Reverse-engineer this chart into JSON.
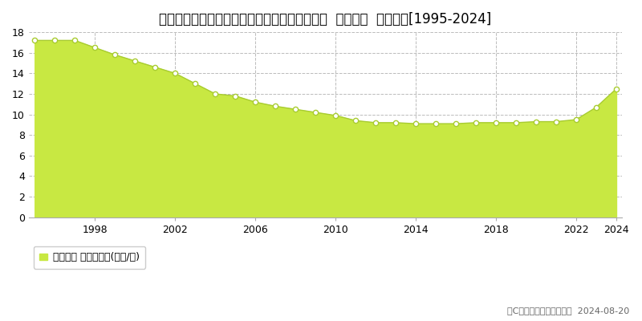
{
  "title": "北海道札幌市手稲区曙２条３丁目５３７番７外  地価公示  地価推移[1995-2024]",
  "years": [
    1995,
    1996,
    1997,
    1998,
    1999,
    2000,
    2001,
    2002,
    2003,
    2004,
    2005,
    2006,
    2007,
    2008,
    2009,
    2010,
    2011,
    2012,
    2013,
    2014,
    2015,
    2016,
    2017,
    2018,
    2019,
    2020,
    2021,
    2022,
    2023,
    2024
  ],
  "values": [
    17.2,
    17.2,
    17.2,
    16.5,
    15.8,
    15.2,
    14.6,
    14.0,
    13.0,
    12.0,
    11.8,
    11.2,
    10.8,
    10.5,
    10.2,
    9.9,
    9.4,
    9.2,
    9.2,
    9.1,
    9.1,
    9.1,
    9.2,
    9.2,
    9.2,
    9.3,
    9.3,
    9.5,
    10.7,
    12.5
  ],
  "fill_color": "#c8e842",
  "line_color": "#a8cc30",
  "marker_facecolor": "#ffffff",
  "marker_edgecolor": "#a8cc30",
  "background_color": "#ffffff",
  "plot_bg_color": "#ffffff",
  "grid_color": "#bbbbbb",
  "ylim": [
    0,
    18
  ],
  "yticks": [
    0,
    2,
    4,
    6,
    8,
    10,
    12,
    14,
    16,
    18
  ],
  "xticks": [
    1998,
    2002,
    2006,
    2010,
    2014,
    2018,
    2022,
    2024
  ],
  "legend_label": "地価公示 平均坪単価(万円/坪)",
  "legend_color": "#c8e842",
  "copyright_text": "（C）土地価格ドットコム  2024-08-20",
  "title_fontsize": 12,
  "axis_fontsize": 9,
  "legend_fontsize": 9,
  "copyright_fontsize": 8
}
